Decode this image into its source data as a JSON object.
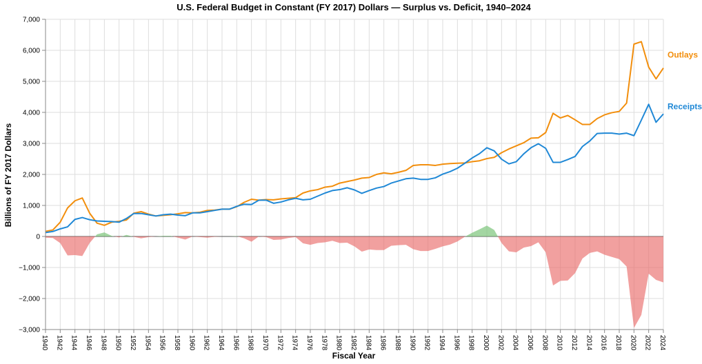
{
  "chart_data": {
    "type": "line",
    "title": "U.S. Federal Budget in Constant (FY 2017) Dollars — Surplus vs. Deficit, 1940–2024",
    "xlabel": "Fiscal Year",
    "ylabel": "Billions of FY 2017 Dollars",
    "xlim": [
      1940,
      2024
    ],
    "ylim": [
      -3000,
      7000
    ],
    "y_ticks": [
      -3000,
      -2000,
      -1000,
      0,
      1000,
      2000,
      3000,
      4000,
      5000,
      6000,
      7000
    ],
    "y_tick_labels": [
      "−3,000",
      "−2,000",
      "−1,000",
      "0",
      "1,000",
      "2,000",
      "3,000",
      "4,000",
      "5,000",
      "6,000",
      "7,000"
    ],
    "x_ticks": [
      1940,
      1942,
      1944,
      1946,
      1948,
      1950,
      1952,
      1954,
      1956,
      1958,
      1960,
      1962,
      1964,
      1966,
      1968,
      1970,
      1972,
      1974,
      1976,
      1978,
      1980,
      1982,
      1984,
      1986,
      1988,
      1990,
      1992,
      1994,
      1996,
      1998,
      2000,
      2002,
      2004,
      2006,
      2008,
      2010,
      2012,
      2014,
      2016,
      2018,
      2020,
      2022,
      2024
    ],
    "grid": true,
    "years": [
      1940,
      1941,
      1942,
      1943,
      1944,
      1945,
      1946,
      1947,
      1948,
      1949,
      1950,
      1951,
      1952,
      1953,
      1954,
      1955,
      1956,
      1957,
      1958,
      1959,
      1960,
      1961,
      1962,
      1963,
      1964,
      1965,
      1966,
      1967,
      1968,
      1969,
      1970,
      1971,
      1972,
      1973,
      1974,
      1975,
      1976,
      1977,
      1978,
      1979,
      1980,
      1981,
      1982,
      1983,
      1984,
      1985,
      1986,
      1987,
      1988,
      1989,
      1990,
      1991,
      1992,
      1993,
      1994,
      1995,
      1996,
      1997,
      1998,
      1999,
      2000,
      2001,
      2002,
      2003,
      2004,
      2005,
      2006,
      2007,
      2008,
      2009,
      2010,
      2011,
      2012,
      2013,
      2014,
      2015,
      2016,
      2017,
      2018,
      2019,
      2020,
      2021,
      2022,
      2023,
      2024
    ],
    "series": [
      {
        "name": "Outlays",
        "color": "#f28e0c",
        "values": [
          165,
          210,
          460,
          920,
          1150,
          1240,
          750,
          430,
          360,
          460,
          490,
          530,
          750,
          800,
          720,
          660,
          680,
          700,
          730,
          770,
          760,
          780,
          840,
          850,
          880,
          880,
          960,
          1100,
          1200,
          1170,
          1190,
          1180,
          1210,
          1230,
          1250,
          1400,
          1470,
          1510,
          1590,
          1620,
          1720,
          1770,
          1820,
          1880,
          1900,
          2000,
          2050,
          2020,
          2070,
          2130,
          2290,
          2310,
          2310,
          2290,
          2330,
          2350,
          2360,
          2370,
          2410,
          2440,
          2510,
          2550,
          2700,
          2820,
          2920,
          3020,
          3170,
          3180,
          3350,
          3970,
          3820,
          3900,
          3760,
          3610,
          3610,
          3800,
          3920,
          3990,
          4030,
          4300,
          6200,
          6280,
          5460,
          5080,
          5430
        ]
      },
      {
        "name": "Receipts",
        "color": "#1f88d6",
        "values": [
          125,
          160,
          245,
          310,
          550,
          610,
          540,
          500,
          490,
          480,
          460,
          580,
          740,
          740,
          700,
          660,
          700,
          720,
          690,
          670,
          760,
          760,
          800,
          840,
          880,
          880,
          970,
          1040,
          1030,
          1170,
          1170,
          1070,
          1110,
          1180,
          1230,
          1180,
          1200,
          1300,
          1400,
          1480,
          1510,
          1570,
          1500,
          1390,
          1480,
          1560,
          1610,
          1720,
          1790,
          1860,
          1880,
          1840,
          1840,
          1890,
          2010,
          2090,
          2200,
          2360,
          2530,
          2670,
          2860,
          2760,
          2490,
          2340,
          2410,
          2660,
          2860,
          2990,
          2840,
          2390,
          2390,
          2480,
          2580,
          2900,
          3080,
          3320,
          3330,
          3330,
          3300,
          3330,
          3250,
          3750,
          4260,
          3680,
          3950
        ]
      }
    ],
    "surplus_color": "#7cc47a",
    "deficit_color": "#e96d6b"
  }
}
